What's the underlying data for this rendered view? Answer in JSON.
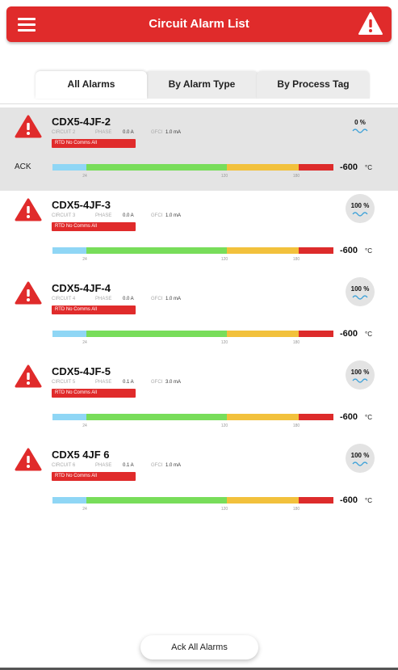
{
  "header": {
    "title": "Circuit Alarm List"
  },
  "tabs": [
    "All Alarms",
    "By Alarm Type",
    "By Process Tag"
  ],
  "items": [
    {
      "name": "CDX5-4JF-2",
      "circuit": "CIRCUIT 2",
      "phase_label": "PHASE",
      "current": "0.0 A",
      "gfi_label": "GFCI",
      "gfi": "1.0 mA",
      "alarm": "RTD No Comms All",
      "ack": "ACK",
      "percent": "0 %",
      "temp": "-600",
      "unit": "°C",
      "ticks": [
        "24",
        "120",
        "180"
      ]
    },
    {
      "name": "CDX5-4JF-3",
      "circuit": "CIRCUIT 3",
      "phase_label": "PHASE",
      "current": "0.0 A",
      "gfi_label": "GFCI",
      "gfi": "1.0 mA",
      "alarm": "RTD No Comms All",
      "percent": "100 %",
      "temp": "-600",
      "unit": "°C",
      "ticks": [
        "24",
        "120",
        "180"
      ]
    },
    {
      "name": "CDX5-4JF-4",
      "circuit": "CIRCUIT 4",
      "phase_label": "PHASE",
      "current": "0.0 A",
      "gfi_label": "GFCI",
      "gfi": "1.0 mA",
      "alarm": "RTD No Comms All",
      "percent": "100 %",
      "temp": "-600",
      "unit": "°C",
      "ticks": [
        "24",
        "120",
        "180"
      ]
    },
    {
      "name": "CDX5-4JF-5",
      "circuit": "CIRCUIT 5",
      "phase_label": "PHASE",
      "current": "0.1 A",
      "gfi_label": "GFCI",
      "gfi": "3.0 mA",
      "alarm": "RTD No Comms All",
      "percent": "100 %",
      "temp": "-600",
      "unit": "°C",
      "ticks": [
        "24",
        "120",
        "180"
      ]
    },
    {
      "name": "CDX5 4JF 6",
      "circuit": "CIRCUIT 6",
      "phase_label": "PHASE",
      "current": "0.1 A",
      "gfi_label": "GFCI",
      "gfi": "1.0 mA",
      "alarm": "RTD No Comms All",
      "percent": "100 %",
      "temp": "-600",
      "unit": "°C",
      "ticks": [
        "24",
        "120",
        "180"
      ]
    }
  ],
  "footer": {
    "button": "Ack All Alarms"
  }
}
